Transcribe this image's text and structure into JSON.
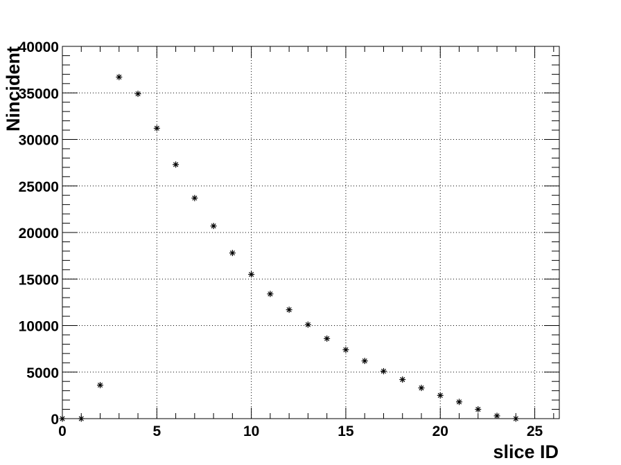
{
  "chart_data": {
    "type": "scatter",
    "marker": "asterisk",
    "marker_color": "#000000",
    "xlabel": "slice ID",
    "ylabel": "Nincident",
    "xlim": [
      0,
      26.3
    ],
    "ylim": [
      0,
      40000
    ],
    "grid": true,
    "x_major_ticks": [
      0,
      5,
      10,
      15,
      20,
      25
    ],
    "x_tick_labels": [
      "0",
      "5",
      "10",
      "15",
      "20",
      "25"
    ],
    "y_major_ticks": [
      0,
      5000,
      10000,
      15000,
      20000,
      25000,
      30000,
      35000,
      40000
    ],
    "y_tick_labels": [
      "0",
      "5000",
      "10000",
      "15000",
      "20000",
      "25000",
      "30000",
      "35000",
      "40000"
    ],
    "x": [
      0,
      1,
      2,
      3,
      4,
      5,
      6,
      7,
      8,
      9,
      10,
      11,
      12,
      13,
      14,
      15,
      16,
      17,
      18,
      19,
      20,
      21,
      22,
      23,
      24
    ],
    "y": [
      0,
      0,
      3600,
      36700,
      34900,
      31200,
      27300,
      23700,
      20700,
      17800,
      15500,
      13400,
      11700,
      10100,
      8600,
      7400,
      6200,
      5100,
      4200,
      3300,
      2500,
      1800,
      1000,
      300,
      0
    ]
  }
}
